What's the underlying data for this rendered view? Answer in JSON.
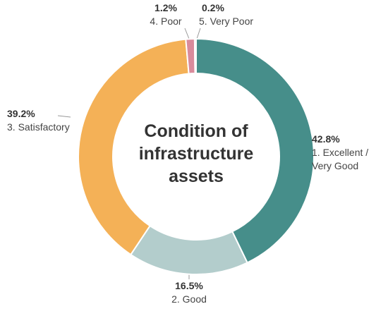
{
  "chart_data": {
    "type": "donut",
    "title": "Condition of infrastructure assets",
    "categories": [
      "1. Excellent / Very Good",
      "2. Good",
      "3. Satisfactory",
      "4. Poor",
      "5. Very Poor"
    ],
    "values": [
      42.8,
      16.5,
      39.2,
      1.2,
      0.2
    ],
    "value_labels": [
      "42.8%",
      "16.5%",
      "39.2%",
      "1.2%",
      "0.2%"
    ],
    "colors": [
      "#468e8a",
      "#b3cdcc",
      "#f4b157",
      "#d98b9c",
      "#c0394b"
    ]
  }
}
